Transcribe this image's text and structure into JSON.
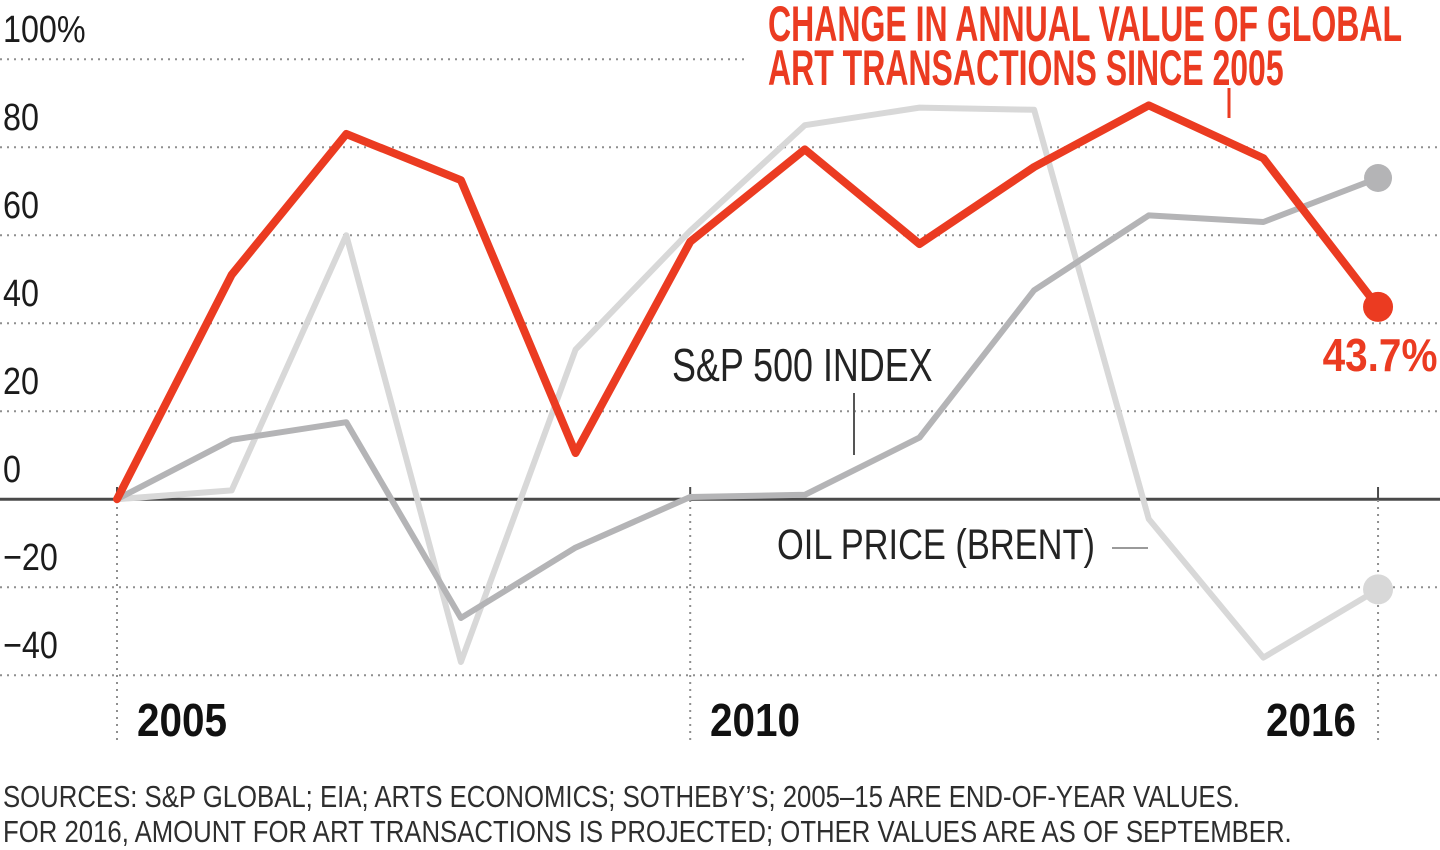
{
  "title": {
    "line1": "CHANGE IN ANNUAL VALUE OF GLOBAL",
    "line2": "ART TRANSACTIONS SINCE 2005",
    "color": "#EB3B21"
  },
  "annotations": {
    "sp500_label": "S&P 500 INDEX",
    "oil_label": "OIL PRICE (BRENT)",
    "art_end_value": "43.7%"
  },
  "y_axis": {
    "labels": [
      "100%",
      "80",
      "60",
      "40",
      "20",
      "0",
      "−20",
      "−40"
    ]
  },
  "x_axis": {
    "ticks": [
      {
        "year": 2005,
        "label": "2005"
      },
      {
        "year": 2010,
        "label": "2010"
      },
      {
        "year": 2016,
        "label": "2016"
      }
    ]
  },
  "source": {
    "line1": "SOURCES: S&P GLOBAL; EIA; ARTS ECONOMICS; SOTHEBY’S; 2005–15 ARE END-OF-YEAR VALUES.",
    "line2": "FOR 2016, AMOUNT FOR ART TRANSACTIONS IS PROJECTED; OTHER VALUES ARE AS OF SEPTEMBER."
  },
  "chart_data": {
    "type": "line",
    "title": "Change in annual value of global art transactions since 2005",
    "unit": "percent change since 2005",
    "x": [
      2005,
      2006,
      2007,
      2008,
      2009,
      2010,
      2011,
      2012,
      2013,
      2014,
      2015,
      2016
    ],
    "series": [
      {
        "key": "oil",
        "name": "Oil price (Brent)",
        "color": "#D8D8D8",
        "width": 6,
        "dot_r": 15,
        "values": [
          0,
          2,
          60,
          -37,
          34,
          61,
          85,
          89,
          88.5,
          -4.5,
          -36,
          -20.5
        ]
      },
      {
        "key": "sp500",
        "name": "S&P 500 Index",
        "color": "#B4B4B6",
        "width": 6,
        "dot_r": 14,
        "values": [
          0,
          13.5,
          17.5,
          -27,
          -11,
          0.5,
          1,
          14,
          47.5,
          64.5,
          63,
          73
        ]
      },
      {
        "key": "art",
        "name": "Global art transactions",
        "color": "#EB3B21",
        "width": 8,
        "dot_r": 15,
        "values": [
          0,
          51,
          83,
          72.5,
          10.5,
          58.5,
          79.5,
          58,
          75.5,
          89.5,
          77.5,
          43.7
        ]
      }
    ],
    "y_ticks": [
      100,
      80,
      60,
      40,
      20,
      0,
      -20,
      -40
    ],
    "x_tick_years": [
      2005,
      2010,
      2016
    ],
    "ylim": [
      -50,
      105
    ],
    "grid": "dotted horizontal gridlines, dotted vertical year ticks below axis",
    "legend_position": "inline labels on chart",
    "colors": {
      "axis": "#4A4A4A",
      "grid": "#8F8F8F"
    }
  }
}
